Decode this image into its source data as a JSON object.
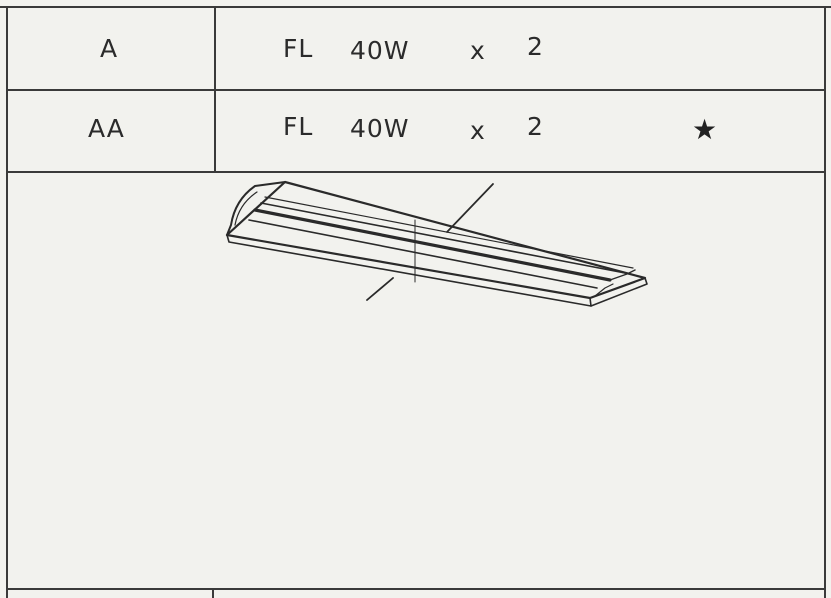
{
  "schedule": {
    "rows": [
      {
        "type": "A",
        "lamp": "FL",
        "wattage": "40W",
        "times": "x",
        "qty": "2",
        "mark": ""
      },
      {
        "type": "AA",
        "lamp": "FL",
        "wattage": "40W",
        "times": "x",
        "qty": "2",
        "mark": "★"
      }
    ]
  },
  "icons": {
    "fixture": "fluorescent-fixture-drawing-icon",
    "star": "star-icon"
  }
}
